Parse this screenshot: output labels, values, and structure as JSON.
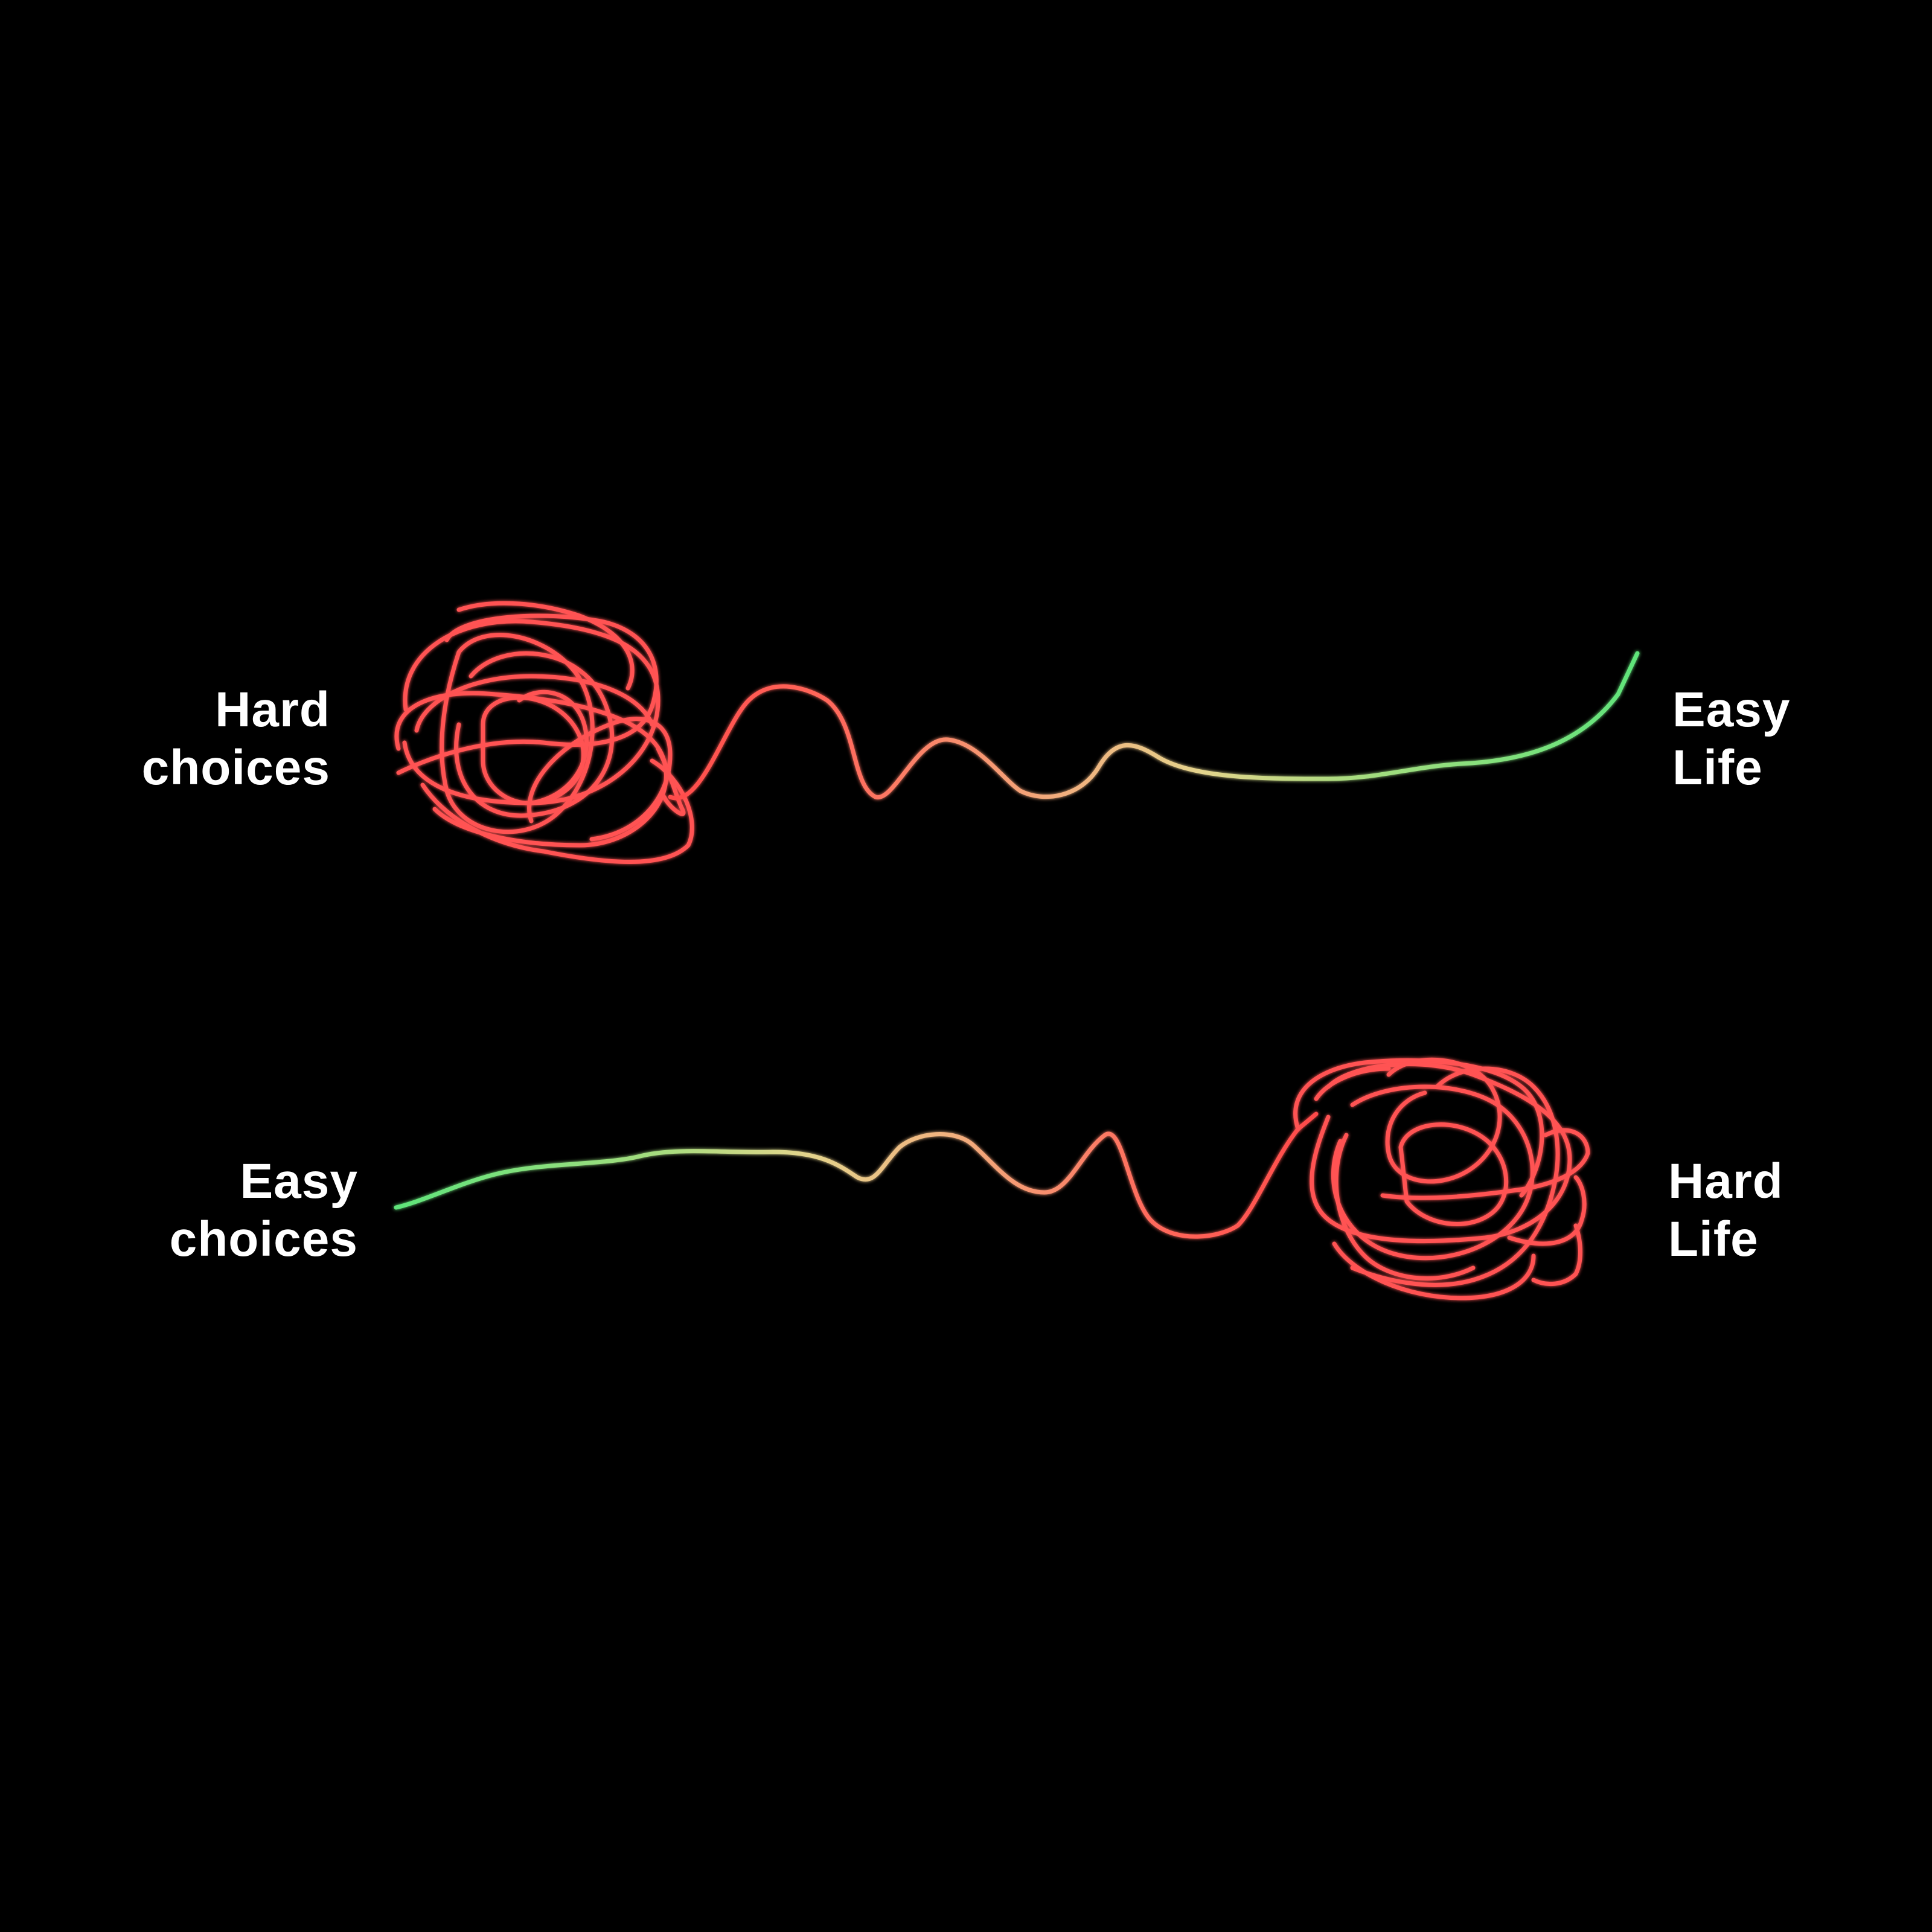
{
  "rows": [
    {
      "left_label": [
        "Hard",
        "choices"
      ],
      "right_label": [
        "Easy",
        "Life"
      ]
    },
    {
      "left_label": [
        "Easy",
        "choices"
      ],
      "right_label": [
        "Hard",
        "Life"
      ]
    }
  ],
  "colors": {
    "background": "#000000",
    "text": "#ffffff",
    "tangle": "#ff4d4d",
    "mid": "#e6d38c",
    "smooth": "#5ee07a"
  }
}
